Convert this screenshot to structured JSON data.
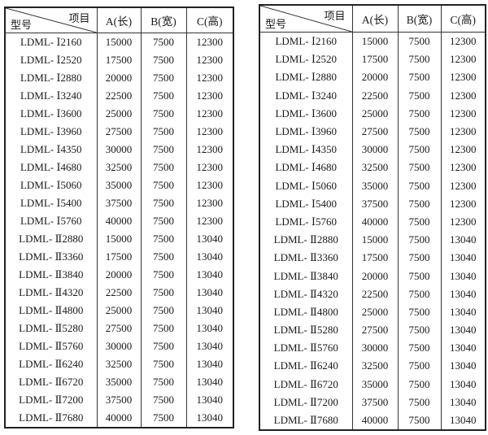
{
  "tables": [
    {
      "header": {
        "item": "项目",
        "model": "型号",
        "a": "A(长)",
        "b": "B(宽)",
        "c": "C(高)"
      },
      "rows": [
        [
          "LDML- Ⅰ2160",
          "15000",
          "7500",
          "12300"
        ],
        [
          "LDML- Ⅰ2520",
          "17500",
          "7500",
          "12300"
        ],
        [
          "LDML- Ⅰ2880",
          "20000",
          "7500",
          "12300"
        ],
        [
          "LDML- Ⅰ3240",
          "22500",
          "7500",
          "12300"
        ],
        [
          "LDML- Ⅰ3600",
          "25000",
          "7500",
          "12300"
        ],
        [
          "LDML- Ⅰ3960",
          "27500",
          "7500",
          "12300"
        ],
        [
          "LDML- Ⅰ4350",
          "30000",
          "7500",
          "12300"
        ],
        [
          "LDML- Ⅰ4680",
          "32500",
          "7500",
          "12300"
        ],
        [
          "LDML- Ⅰ5060",
          "35000",
          "7500",
          "12300"
        ],
        [
          "LDML- Ⅰ5400",
          "37500",
          "7500",
          "12300"
        ],
        [
          "LDML- Ⅰ5760",
          "40000",
          "7500",
          "12300"
        ],
        [
          "LDML- Ⅱ2880",
          "15000",
          "7500",
          "13040"
        ],
        [
          "LDML- Ⅱ3360",
          "17500",
          "7500",
          "13040"
        ],
        [
          "LDML- Ⅱ3840",
          "20000",
          "7500",
          "13040"
        ],
        [
          "LDML- Ⅱ4320",
          "22500",
          "7500",
          "13040"
        ],
        [
          "LDML- Ⅱ4800",
          "25000",
          "7500",
          "13040"
        ],
        [
          "LDML- Ⅱ5280",
          "27500",
          "7500",
          "13040"
        ],
        [
          "LDML- Ⅱ5760",
          "30000",
          "7500",
          "13040"
        ],
        [
          "LDML- Ⅱ6240",
          "32500",
          "7500",
          "13040"
        ],
        [
          "LDML- Ⅱ6720",
          "35000",
          "7500",
          "13040"
        ],
        [
          "LDML- Ⅱ7200",
          "37500",
          "7500",
          "13040"
        ],
        [
          "LDML- Ⅱ7680",
          "40000",
          "7500",
          "13040"
        ]
      ]
    },
    {
      "header": {
        "item": "项目",
        "model": "型号",
        "a": "A(长)",
        "b": "B(宽)",
        "c": "C(高)"
      },
      "rows": [
        [
          "LDML- Ⅰ2160",
          "15000",
          "7500",
          "12300"
        ],
        [
          "LDML- Ⅰ2520",
          "17500",
          "7500",
          "12300"
        ],
        [
          "LDML- Ⅰ2880",
          "20000",
          "7500",
          "12300"
        ],
        [
          "LDML- Ⅰ3240",
          "22500",
          "7500",
          "12300"
        ],
        [
          "LDML- Ⅰ3600",
          "25000",
          "7500",
          "12300"
        ],
        [
          "LDML- Ⅰ3960",
          "27500",
          "7500",
          "12300"
        ],
        [
          "LDML- Ⅰ4350",
          "30000",
          "7500",
          "12300"
        ],
        [
          "LDML- Ⅰ4680",
          "32500",
          "7500",
          "12300"
        ],
        [
          "LDML- Ⅰ5060",
          "35000",
          "7500",
          "12300"
        ],
        [
          "LDML- Ⅰ5400",
          "37500",
          "7500",
          "12300"
        ],
        [
          "LDML- Ⅰ5760",
          "40000",
          "7500",
          "12300"
        ],
        [
          "LDML- Ⅱ2880",
          "15000",
          "7500",
          "13040"
        ],
        [
          "LDML- Ⅱ3360",
          "17500",
          "7500",
          "13040"
        ],
        [
          "LDML- Ⅱ3840",
          "20000",
          "7500",
          "13040"
        ],
        [
          "LDML- Ⅱ4320",
          "22500",
          "7500",
          "13040"
        ],
        [
          "LDML- Ⅱ4800",
          "25000",
          "7500",
          "13040"
        ],
        [
          "LDML- Ⅱ5280",
          "27500",
          "7500",
          "13040"
        ],
        [
          "LDML- Ⅱ5760",
          "30000",
          "7500",
          "13040"
        ],
        [
          "LDML- Ⅱ6240",
          "32500",
          "7500",
          "13040"
        ],
        [
          "LDML- Ⅱ6720",
          "35000",
          "7500",
          "13040"
        ],
        [
          "LDML- Ⅱ7200",
          "37500",
          "7500",
          "13040"
        ],
        [
          "LDML- Ⅱ7680",
          "40000",
          "7500",
          "13040"
        ]
      ]
    }
  ]
}
